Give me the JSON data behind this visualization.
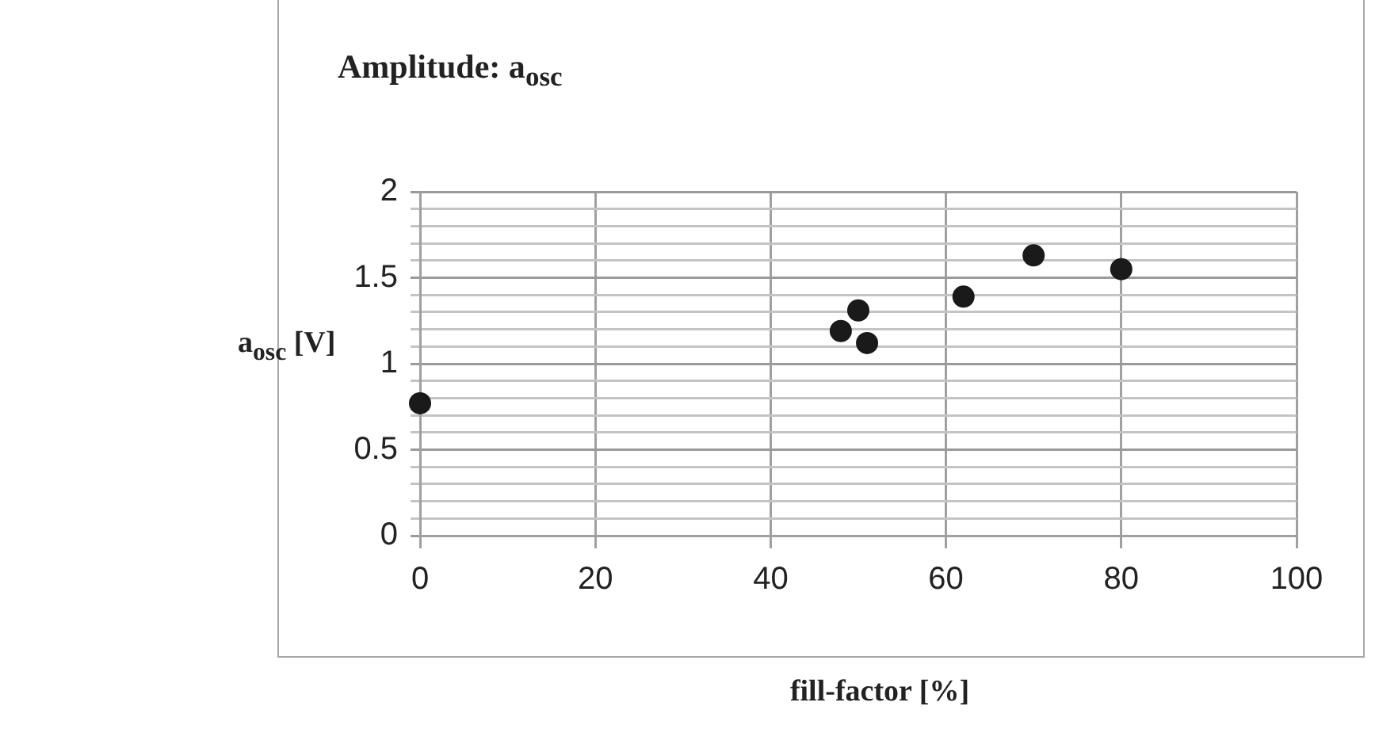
{
  "chart_data": {
    "type": "scatter",
    "title": "Amplitude: a$_{osc}$",
    "xlabel": "fill-factor [%]",
    "ylabel": "a$_{osc}$ [V]",
    "x": [
      0,
      48,
      50,
      51,
      62,
      70,
      80
    ],
    "series": [
      {
        "color": "#1a1a1a",
        "values": [
          0.77,
          1.19,
          1.31,
          1.12,
          1.39,
          1.63,
          1.55
        ]
      }
    ],
    "xlim": [
      0,
      100
    ],
    "xticks": [
      0,
      20,
      40,
      60,
      80,
      100
    ],
    "ylim": [
      0,
      2
    ],
    "yticks": [
      0,
      {
        "value": 0.1,
        "label": null
      },
      {
        "value": 0.2,
        "label": null
      },
      {
        "value": 0.3,
        "label": null
      },
      {
        "value": 0.4,
        "label": null
      },
      0.5,
      {
        "value": 0.6,
        "label": null
      },
      {
        "value": 0.7,
        "label": null
      },
      {
        "value": 0.8,
        "label": null
      },
      {
        "value": 0.9,
        "label": null
      },
      1,
      {
        "value": 1.1,
        "label": null
      },
      {
        "value": 1.2,
        "label": null
      },
      {
        "value": 1.3,
        "label": null
      },
      {
        "value": 1.4,
        "label": null
      },
      1.5,
      {
        "value": 1.6,
        "label": null
      },
      {
        "value": 1.7,
        "label": null
      },
      {
        "value": 1.8,
        "label": null
      },
      {
        "value": 1.9,
        "label": null
      },
      2
    ],
    "grid": true,
    "legend": false,
    "marker": "circle"
  }
}
